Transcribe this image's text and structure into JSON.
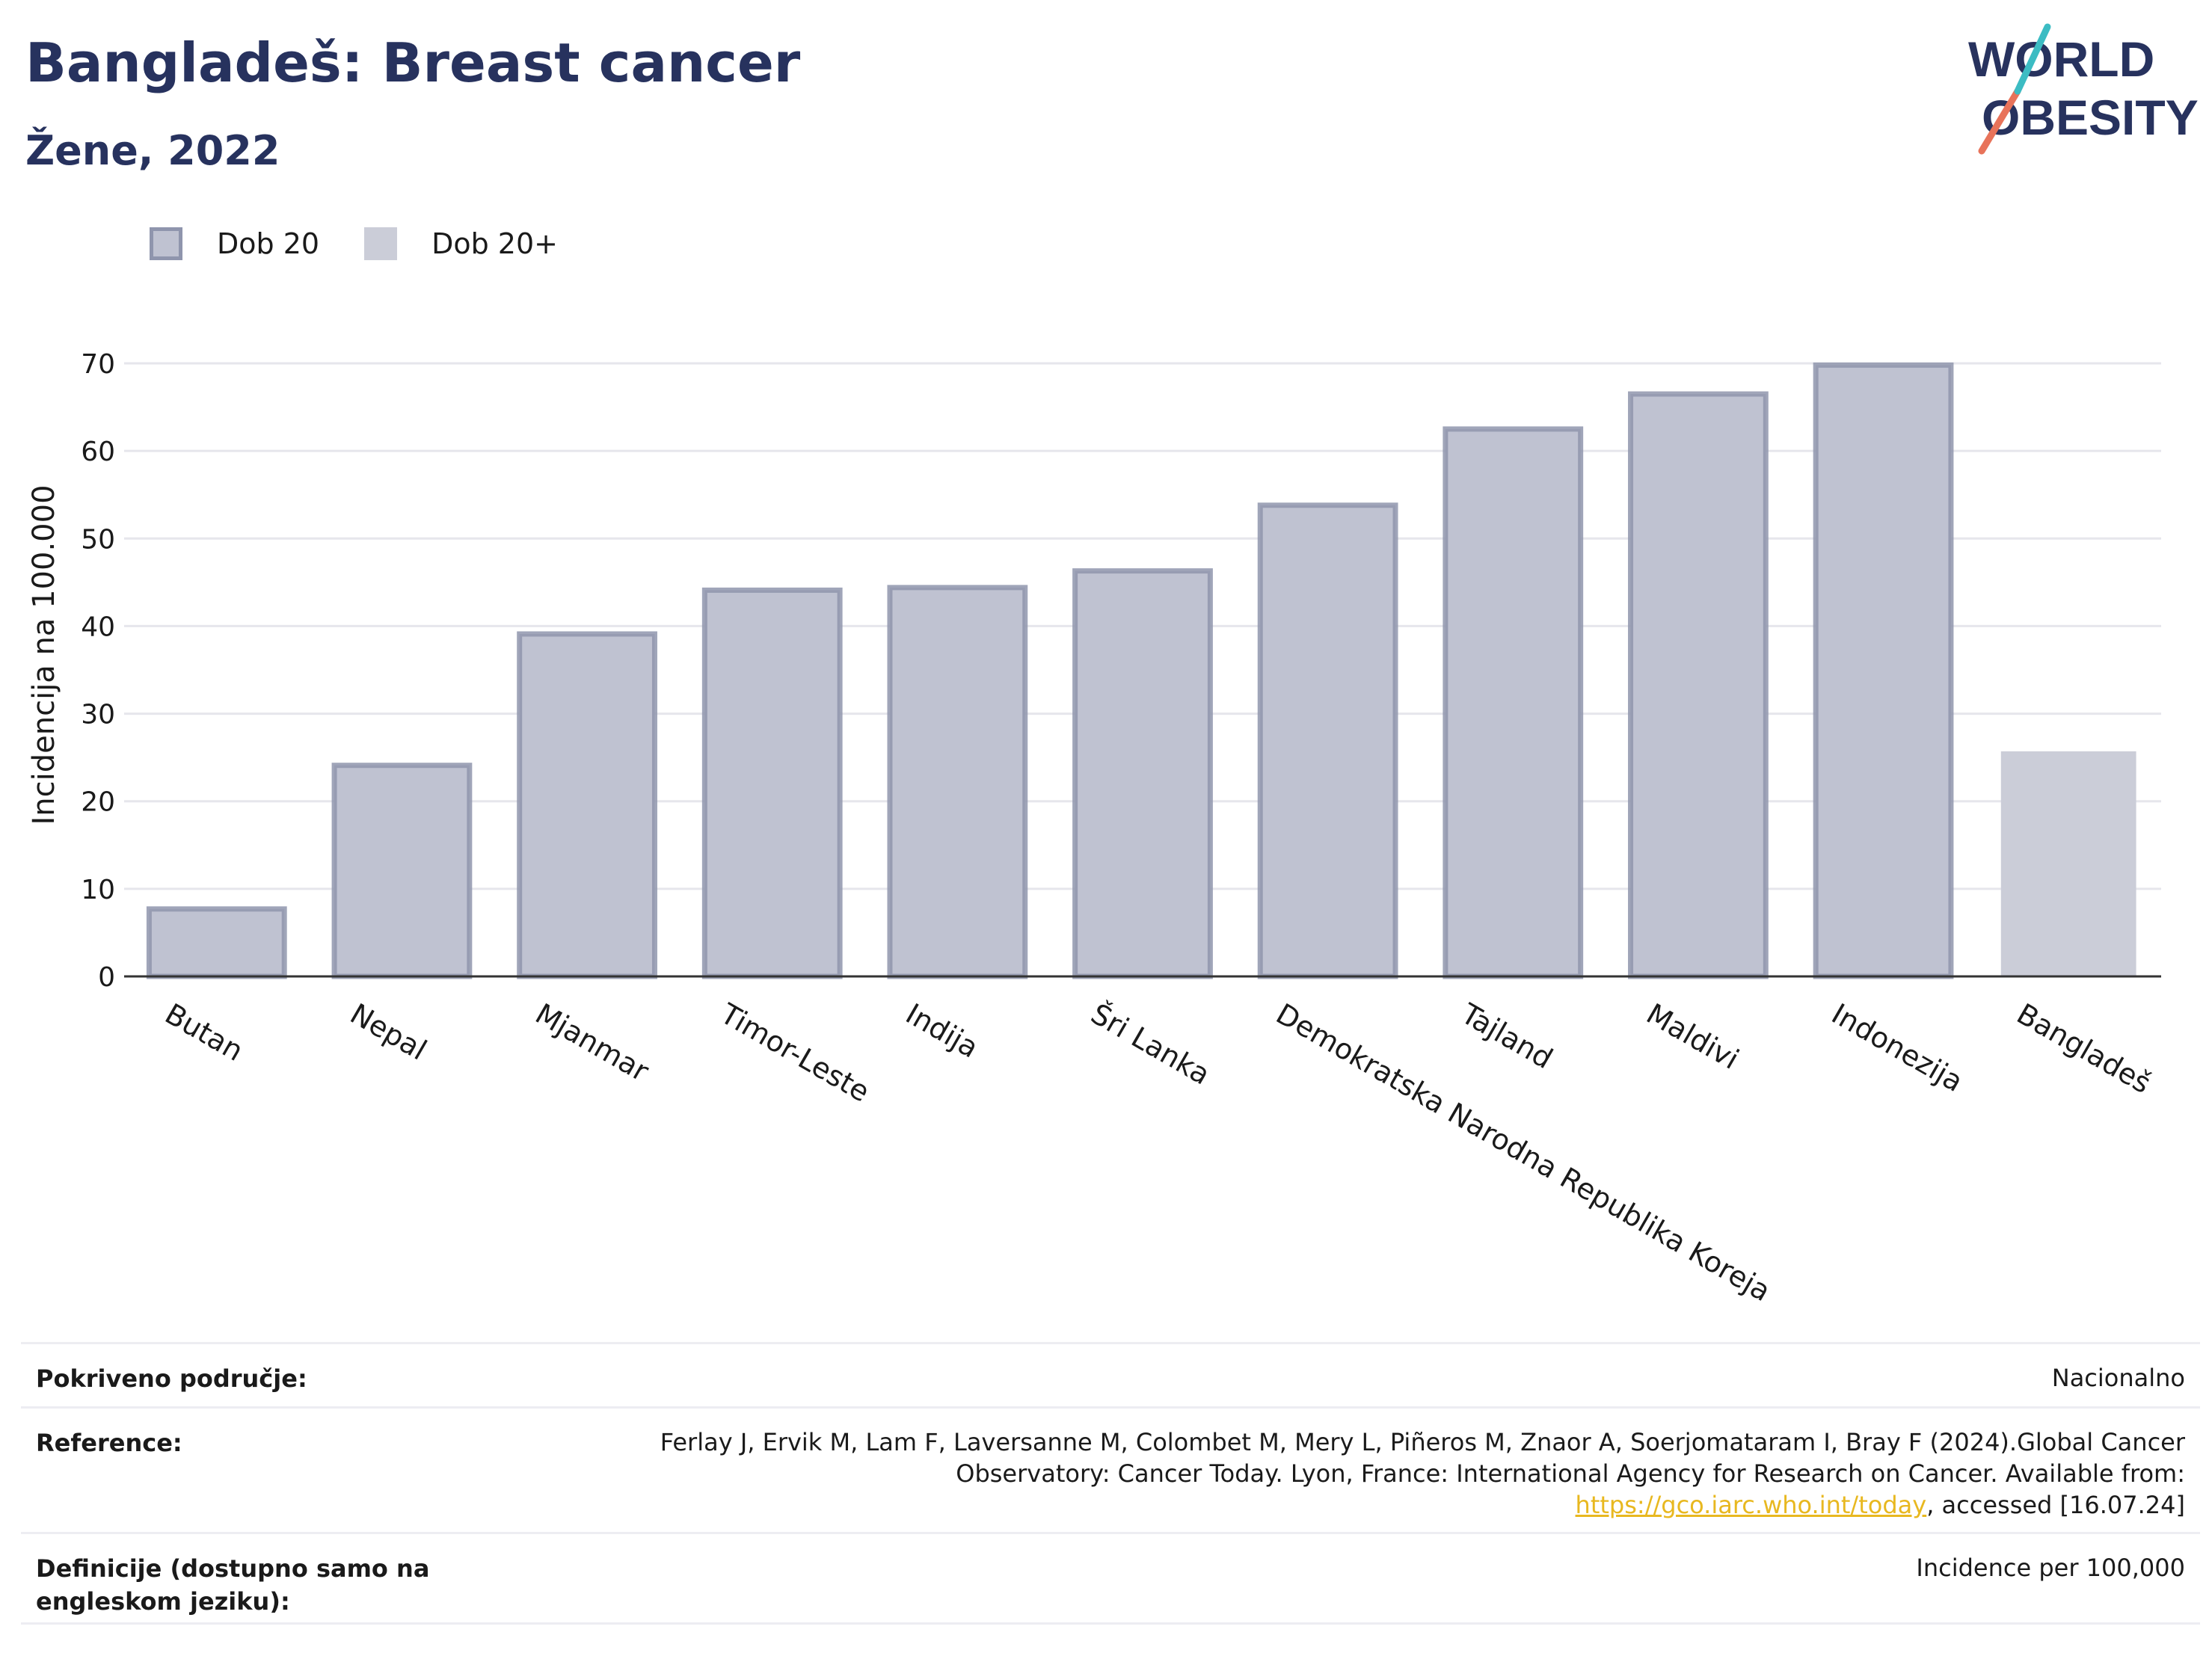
{
  "header": {
    "title": "Bangladeš: Breast cancer",
    "subtitle": "Žene, 2022"
  },
  "logo": {
    "line1": "WORLD",
    "line2": "OBESITY",
    "accent_colors": [
      "#e8735a",
      "#3cbcc3"
    ],
    "text_color": "#27325e"
  },
  "legend": {
    "items": [
      {
        "label": "Dob 20"
      },
      {
        "label": "Dob 20+"
      }
    ]
  },
  "chart_data": {
    "type": "bar",
    "ylabel": "Incidencija na 100.000",
    "ylim": [
      0,
      70
    ],
    "yticks": [
      0,
      10,
      20,
      30,
      40,
      50,
      60,
      70
    ],
    "grid": true,
    "legend_position": "top-left",
    "categories": [
      "Butan",
      "Nepal",
      "Mjanmar",
      "Timor-Leste",
      "Indija",
      "Šri Lanka",
      "Demokratska Narodna Republika Koreja",
      "Tajland",
      "Maldivi",
      "Indonezija",
      "Bangladeš"
    ],
    "series": [
      {
        "name": "Dob 20",
        "values": [
          7.7,
          24.1,
          39.1,
          44.1,
          44.4,
          46.3,
          53.8,
          62.5,
          66.5,
          69.8,
          null
        ],
        "color": "#bfc2d1",
        "border_color": "#8f95ad"
      },
      {
        "name": "Dob 20+",
        "values": [
          null,
          null,
          null,
          null,
          null,
          null,
          null,
          null,
          null,
          null,
          25.7
        ],
        "color": "#cbcdd8"
      }
    ]
  },
  "footer": {
    "coverage_label": "Pokriveno područje:",
    "coverage_value": "Nacionalno",
    "reference_label": "Reference:",
    "reference_text_1": "Ferlay J, Ervik M, Lam F, Laversanne M, Colombet M, Mery L, Piñeros M, Znaor A, Soerjomataram I, Bray F (2024).Global Cancer Observatory: Cancer Today. Lyon, France: International Agency for Research on Cancer. Available from: ",
    "reference_link": "https://gco.iarc.who.int/today",
    "reference_text_2": ", accessed [16.07.24]",
    "definitions_label": "Definicije (dostupno samo na engleskom jeziku):",
    "definitions_value": "Incidence per 100,000"
  }
}
